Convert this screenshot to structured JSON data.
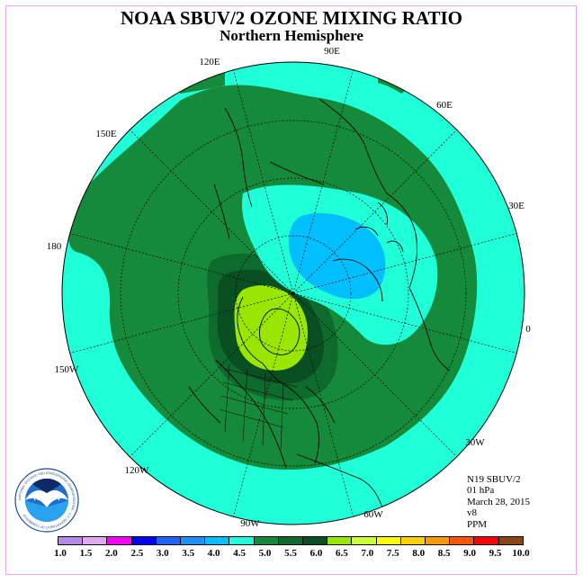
{
  "title": "NOAA SBUV/2 OZONE MIXING RATIO",
  "subtitle": "Northern Hemisphere",
  "longitude_labels": [
    {
      "id": "lon-90e",
      "text": "90E"
    },
    {
      "id": "lon-120e",
      "text": "120E"
    },
    {
      "id": "lon-60e",
      "text": "60E"
    },
    {
      "id": "lon-150e",
      "text": "150E"
    },
    {
      "id": "lon-30e",
      "text": "30E"
    },
    {
      "id": "lon-180",
      "text": "180"
    },
    {
      "id": "lon-0",
      "text": "0"
    },
    {
      "id": "lon-150w",
      "text": "150W"
    },
    {
      "id": "lon-30w",
      "text": "30W"
    },
    {
      "id": "lon-120w",
      "text": "120W"
    },
    {
      "id": "lon-60w",
      "text": "60W"
    },
    {
      "id": "lon-90w",
      "text": "90W"
    }
  ],
  "info": {
    "satellite": "N19 SBUV/2",
    "level": "01 hPa",
    "date": "March 28, 2015",
    "version": "v8",
    "units": "PPM"
  },
  "logo": {
    "text": "NOAA",
    "ring_text": "NATIONAL OCEANIC AND ATMOSPHERIC ADMINISTRATION · U.S. DEPARTMENT OF COMMERCE"
  },
  "colorbar": {
    "ticks": [
      "1.0",
      "1.5",
      "2.0",
      "2.5",
      "3.0",
      "3.5",
      "4.0",
      "4.5",
      "5.0",
      "5.5",
      "6.0",
      "6.5",
      "7.0",
      "7.5",
      "8.0",
      "8.5",
      "9.0",
      "9.5",
      "10.0"
    ],
    "colors": [
      "#b58ae6",
      "#e0a8f0",
      "#ff00ff",
      "#0000ff",
      "#1e64ff",
      "#1e90ff",
      "#00bfff",
      "#1fffd8",
      "#158a3a",
      "#0e6b2e",
      "#0a4f22",
      "#99e600",
      "#ccff33",
      "#ffff00",
      "#ffd100",
      "#ff9900",
      "#ff5500",
      "#ff0000",
      "#8b4513"
    ]
  },
  "map_colors": {
    "cyan": "#1fffd8",
    "green": "#158a3a",
    "dark_green": "#0e6b2e",
    "darkest_green": "#0a4f22",
    "lime": "#99e600",
    "sky": "#00bfff",
    "light_sky": "#38d4ff"
  }
}
